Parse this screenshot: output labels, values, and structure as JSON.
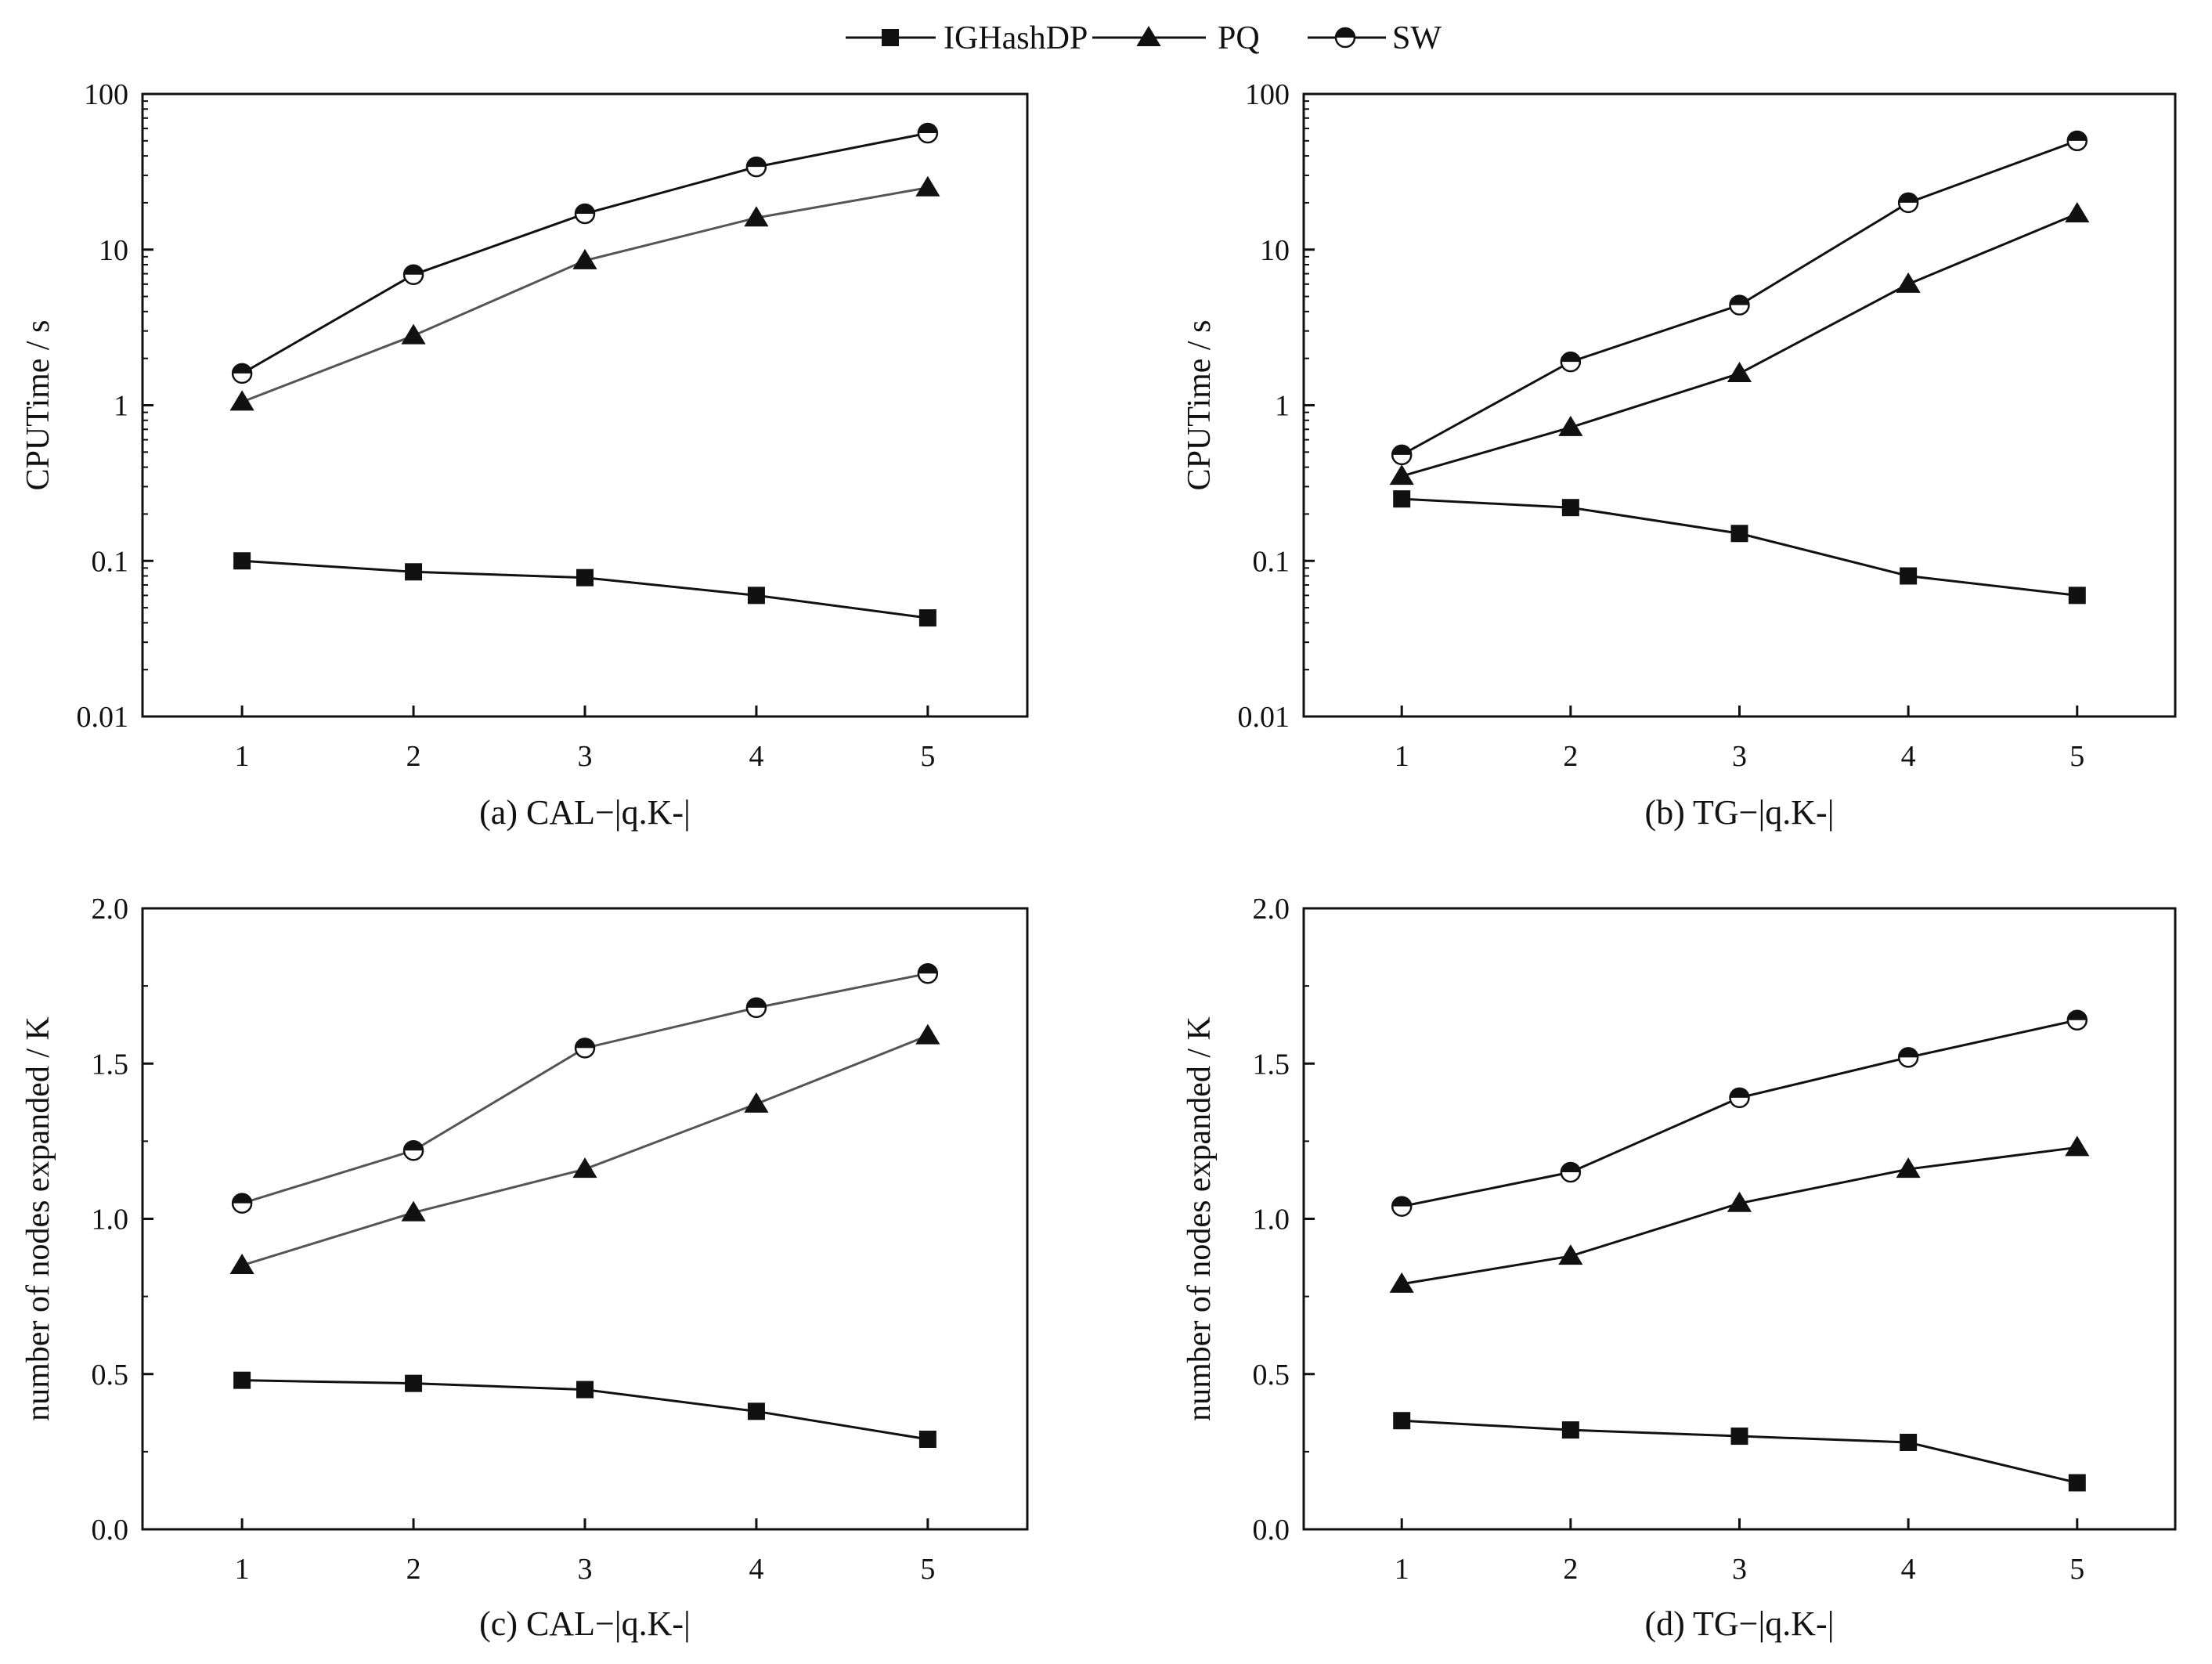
{
  "legend": {
    "items": [
      {
        "name": "IGHashDP",
        "marker": "square",
        "color": "#111111"
      },
      {
        "name": "PQ",
        "marker": "triangle",
        "color": "#111111"
      },
      {
        "name": "SW",
        "marker": "half-circle",
        "color": "#111111"
      }
    ]
  },
  "chart_data": [
    {
      "type": "line",
      "title": "(a) CAL−|q.K-|",
      "xlabel": "",
      "ylabel": "CPUTime / s",
      "yscale": "log",
      "ylim": [
        0.01,
        100
      ],
      "yticks": [
        "0.01",
        "0.1",
        "1",
        "10",
        "100"
      ],
      "x": [
        1,
        2,
        3,
        4,
        5
      ],
      "xticks": [
        "1",
        "2",
        "3",
        "4",
        "5"
      ],
      "series": [
        {
          "name": "IGHashDP",
          "values": [
            0.1,
            0.085,
            0.078,
            0.06,
            0.043
          ]
        },
        {
          "name": "PQ",
          "values": [
            1.05,
            2.8,
            8.5,
            16,
            25
          ]
        },
        {
          "name": "SW",
          "values": [
            1.6,
            6.9,
            17,
            34,
            56
          ]
        }
      ]
    },
    {
      "type": "line",
      "title": "(b) TG−|q.K-|",
      "xlabel": "",
      "ylabel": "CPUTime / s",
      "yscale": "log",
      "ylim": [
        0.01,
        100
      ],
      "yticks": [
        "0.01",
        "0.1",
        "1",
        "10",
        "100"
      ],
      "x": [
        1,
        2,
        3,
        4,
        5
      ],
      "xticks": [
        "1",
        "2",
        "3",
        "4",
        "5"
      ],
      "series": [
        {
          "name": "IGHashDP",
          "values": [
            0.25,
            0.22,
            0.15,
            0.08,
            0.06
          ]
        },
        {
          "name": "PQ",
          "values": [
            0.35,
            0.72,
            1.6,
            6,
            17
          ]
        },
        {
          "name": "SW",
          "values": [
            0.48,
            1.9,
            4.4,
            20,
            50
          ]
        }
      ]
    },
    {
      "type": "line",
      "title": "(c) CAL−|q.K-|",
      "xlabel": "",
      "ylabel": "number of nodes expanded / K",
      "yscale": "linear",
      "ylim": [
        0,
        2
      ],
      "yticks": [
        "0.0",
        "0.5",
        "1.0",
        "1.5",
        "2.0"
      ],
      "x": [
        1,
        2,
        3,
        4,
        5
      ],
      "xticks": [
        "1",
        "2",
        "3",
        "4",
        "5"
      ],
      "series": [
        {
          "name": "IGHashDP",
          "values": [
            0.48,
            0.47,
            0.45,
            0.38,
            0.29
          ]
        },
        {
          "name": "PQ",
          "values": [
            0.85,
            1.02,
            1.16,
            1.37,
            1.59
          ]
        },
        {
          "name": "SW",
          "values": [
            1.05,
            1.22,
            1.55,
            1.68,
            1.79
          ]
        }
      ]
    },
    {
      "type": "line",
      "title": "(d) TG−|q.K-|",
      "xlabel": "",
      "ylabel": "number of nodes expanded / K",
      "yscale": "linear",
      "ylim": [
        0,
        2
      ],
      "yticks": [
        "0.0",
        "0.5",
        "1.0",
        "1.5",
        "2.0"
      ],
      "x": [
        1,
        2,
        3,
        4,
        5
      ],
      "xticks": [
        "1",
        "2",
        "3",
        "4",
        "5"
      ],
      "series": [
        {
          "name": "IGHashDP",
          "values": [
            0.35,
            0.32,
            0.3,
            0.28,
            0.15
          ]
        },
        {
          "name": "PQ",
          "values": [
            0.79,
            0.88,
            1.05,
            1.16,
            1.23
          ]
        },
        {
          "name": "SW",
          "values": [
            1.04,
            1.15,
            1.39,
            1.52,
            1.64
          ]
        }
      ]
    }
  ]
}
